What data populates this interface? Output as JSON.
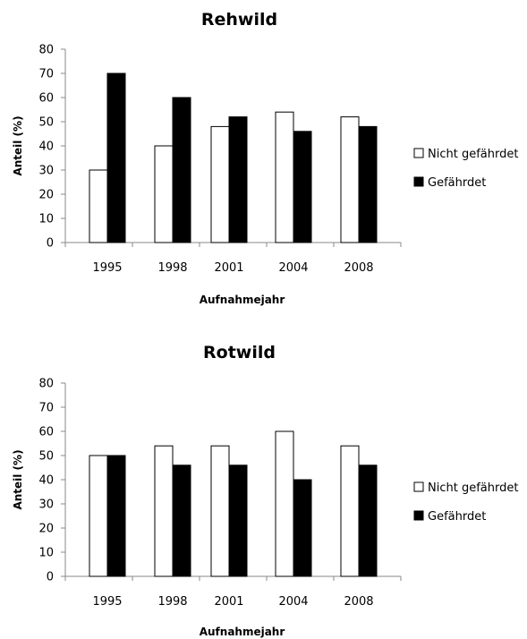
{
  "chart_data": [
    {
      "type": "bar",
      "title": "Rehwild",
      "xlabel": "Aufnahmejahr",
      "ylabel": "Anteil (%)",
      "ylim": [
        0,
        80
      ],
      "yticks": [
        "0",
        "10",
        "20",
        "30",
        "40",
        "50",
        "60",
        "70",
        "80"
      ],
      "categories": [
        "1995",
        "1998",
        "2001",
        "2004",
        "2008"
      ],
      "series": [
        {
          "name": "Nicht gefährdet",
          "color": "#ffffff",
          "values": [
            30,
            40,
            48,
            54,
            52
          ]
        },
        {
          "name": "Gefährdet",
          "color": "#000000",
          "values": [
            70,
            60,
            52,
            46,
            48
          ]
        }
      ],
      "grid": false,
      "legend": "right"
    },
    {
      "type": "bar",
      "title": "Rotwild",
      "xlabel": "Aufnahmejahr",
      "ylabel": "Anteil (%)",
      "ylim": [
        0,
        80
      ],
      "yticks": [
        "0",
        "10",
        "20",
        "30",
        "40",
        "50",
        "60",
        "70",
        "80"
      ],
      "categories": [
        "1995",
        "1998",
        "2001",
        "2004",
        "2008"
      ],
      "series": [
        {
          "name": "Nicht gefährdet",
          "color": "#ffffff",
          "values": [
            50,
            54,
            54,
            60,
            54
          ]
        },
        {
          "name": "Gefährdet",
          "color": "#000000",
          "values": [
            50,
            46,
            46,
            40,
            46
          ]
        }
      ],
      "grid": false,
      "legend": "right"
    }
  ]
}
